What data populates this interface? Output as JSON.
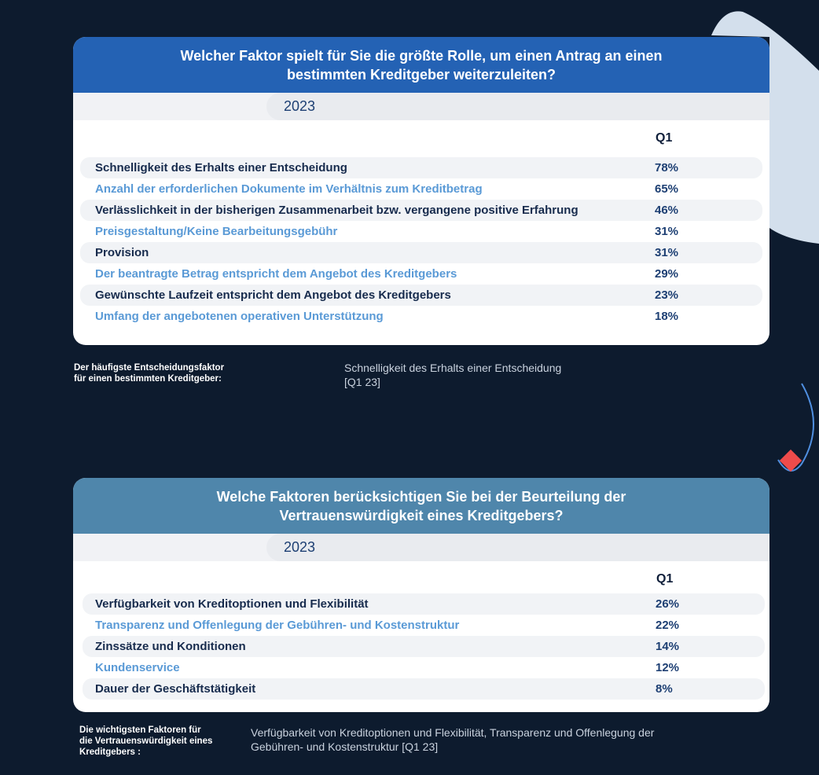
{
  "section1": {
    "question": "Welcher Faktor spielt für Sie die größte Rolle, um einen Antrag an einen bestimmten Kreditgeber weiterzuleiten?",
    "year": "2023",
    "column": "Q1",
    "rows": [
      {
        "label": "Schnelligkeit des Erhalts einer Entscheidung",
        "value": "78%"
      },
      {
        "label": "Anzahl der erforderlichen Dokumente im Verhältnis zum Kreditbetrag",
        "value": "65%"
      },
      {
        "label": "Verlässlichkeit in der bisherigen Zusammenarbeit bzw. vergangene positive Erfahrung",
        "value": "46%"
      },
      {
        "label": "Preisgestaltung/Keine Bearbeitungsgebühr",
        "value": "31%"
      },
      {
        "label": "Provision",
        "value": "31%"
      },
      {
        "label": "Der beantragte Betrag entspricht dem Angebot des Kreditgebers",
        "value": "29%"
      },
      {
        "label": "Gewünschte Laufzeit entspricht dem Angebot des Kreditgebers",
        "value": "23%"
      },
      {
        "label": "Umfang der angebotenen operativen Unterstützung",
        "value": "18%"
      }
    ],
    "note_label_line1": "Der häufigste Entscheidungsfaktor",
    "note_label_line2": "für einen bestimmten Kreditgeber:",
    "note_text_line1": "Schnelligkeit des Erhalts einer Entscheidung",
    "note_text_line2": "[Q1 23]"
  },
  "section2": {
    "question": "Welche Faktoren berücksichtigen Sie bei der Beurteilung der Vertrauenswürdigkeit eines Kreditgebers?",
    "year": "2023",
    "column": "Q1",
    "rows": [
      {
        "label": "Verfügbarkeit von Kreditoptionen und Flexibilität",
        "value": "26%"
      },
      {
        "label": "Transparenz und Offenlegung der Gebühren- und Kostenstruktur",
        "value": "22%"
      },
      {
        "label": "Zinssätze und Konditionen",
        "value": "14%"
      },
      {
        "label": "Kundenservice",
        "value": "12%"
      },
      {
        "label": "Dauer der Geschäftstätigkeit",
        "value": "8%"
      }
    ],
    "note_label_line1": "Die wichtigsten Faktoren für",
    "note_label_line2": "die Vertrauenswürdigkeit eines",
    "note_label_line3": "Kreditgebers :",
    "note_text_line1": "Verfügbarkeit von Kreditoptionen und Flexibilität, Transparenz und Offenlegung der",
    "note_text_line2": "Gebühren- und Kostenstruktur [Q1 23]"
  },
  "colors": {
    "background": "#0d1b2e",
    "header1": "#2462b4",
    "header2": "#4f86ab",
    "dark_label": "#172b4d",
    "light_label": "#5a9ad6",
    "accent_red": "#ee4b4b"
  },
  "chart_data": [
    {
      "type": "table",
      "title": "Welcher Faktor spielt für Sie die größte Rolle, um einen Antrag an einen bestimmten Kreditgeber weiterzuleiten?",
      "columns": [
        "Q1"
      ],
      "categories": [
        "Schnelligkeit des Erhalts einer Entscheidung",
        "Anzahl der erforderlichen Dokumente im Verhältnis zum Kreditbetrag",
        "Verlässlichkeit in der bisherigen Zusammenarbeit bzw. vergangene positive Erfahrung",
        "Preisgestaltung/Keine Bearbeitungsgebühr",
        "Provision",
        "Der beantragte Betrag entspricht dem Angebot des Kreditgebers",
        "Gewünschte Laufzeit entspricht dem Angebot des Kreditgebers",
        "Umfang der angebotenen operativen Unterstützung"
      ],
      "values": [
        78,
        65,
        46,
        31,
        31,
        29,
        23,
        18
      ]
    },
    {
      "type": "table",
      "title": "Welche Faktoren berücksichtigen Sie bei der Beurteilung der Vertrauenswürdigkeit eines Kreditgebers?",
      "columns": [
        "Q1"
      ],
      "categories": [
        "Verfügbarkeit von Kreditoptionen und Flexibilität",
        "Transparenz und Offenlegung der Gebühren- und Kostenstruktur",
        "Zinssätze und Konditionen",
        "Kundenservice",
        "Dauer der Geschäftstätigkeit"
      ],
      "values": [
        26,
        22,
        14,
        12,
        8
      ]
    }
  ]
}
